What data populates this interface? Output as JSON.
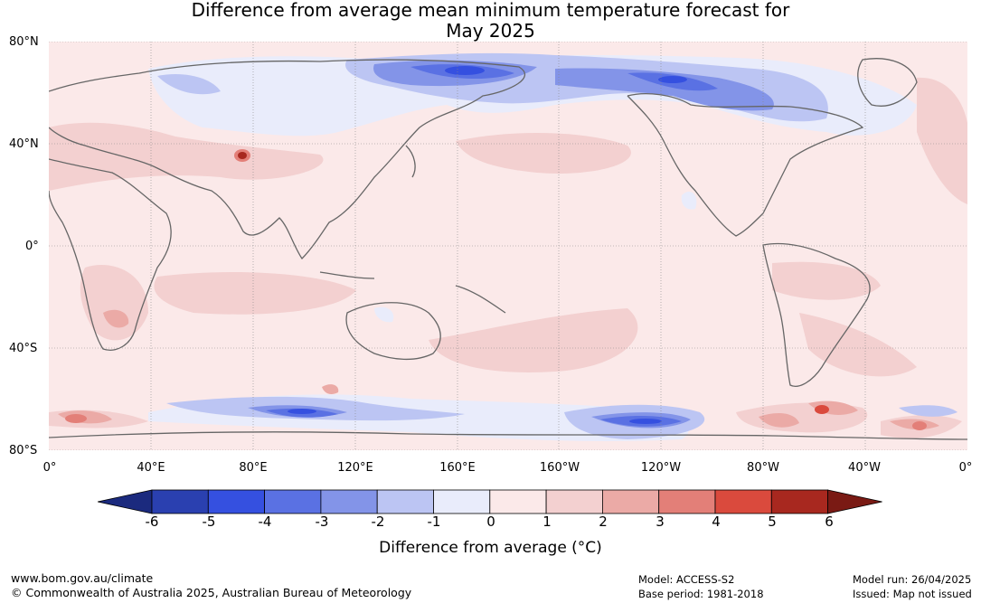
{
  "title": {
    "line1": "Difference from average mean minimum temperature forecast for",
    "line2": "May 2025"
  },
  "map": {
    "lat_labels": [
      "80°N",
      "40°N",
      "0°",
      "40°S",
      "80°S"
    ],
    "lon_labels": [
      "0°",
      "40°E",
      "80°E",
      "120°E",
      "160°E",
      "160°W",
      "120°W",
      "80°W",
      "40°W",
      "0°"
    ]
  },
  "colorbar": {
    "ticks": [
      "-6",
      "-5",
      "-4",
      "-3",
      "-2",
      "-1",
      "0",
      "1",
      "2",
      "3",
      "4",
      "5",
      "6"
    ],
    "colors": [
      "#1b2a7e",
      "#2a40b0",
      "#3550e0",
      "#5a71e3",
      "#8394e8",
      "#bcc5f3",
      "#e9ecfb",
      "#fbe9e9",
      "#f3d0d0",
      "#ebaaa6",
      "#e37f78",
      "#da4a3d",
      "#a8281f",
      "#7a1a14"
    ],
    "label": "Difference from average (°C)"
  },
  "footer": {
    "website": "www.bom.gov.au/climate",
    "copyright": "© Commonwealth of Australia 2025, Australian Bureau of Meteorology",
    "model": "Model: ACCESS-S2",
    "base_period": "Base period: 1981-2018",
    "model_run": "Model run: 26/04/2025",
    "issued": "Issued: Map not issued"
  }
}
